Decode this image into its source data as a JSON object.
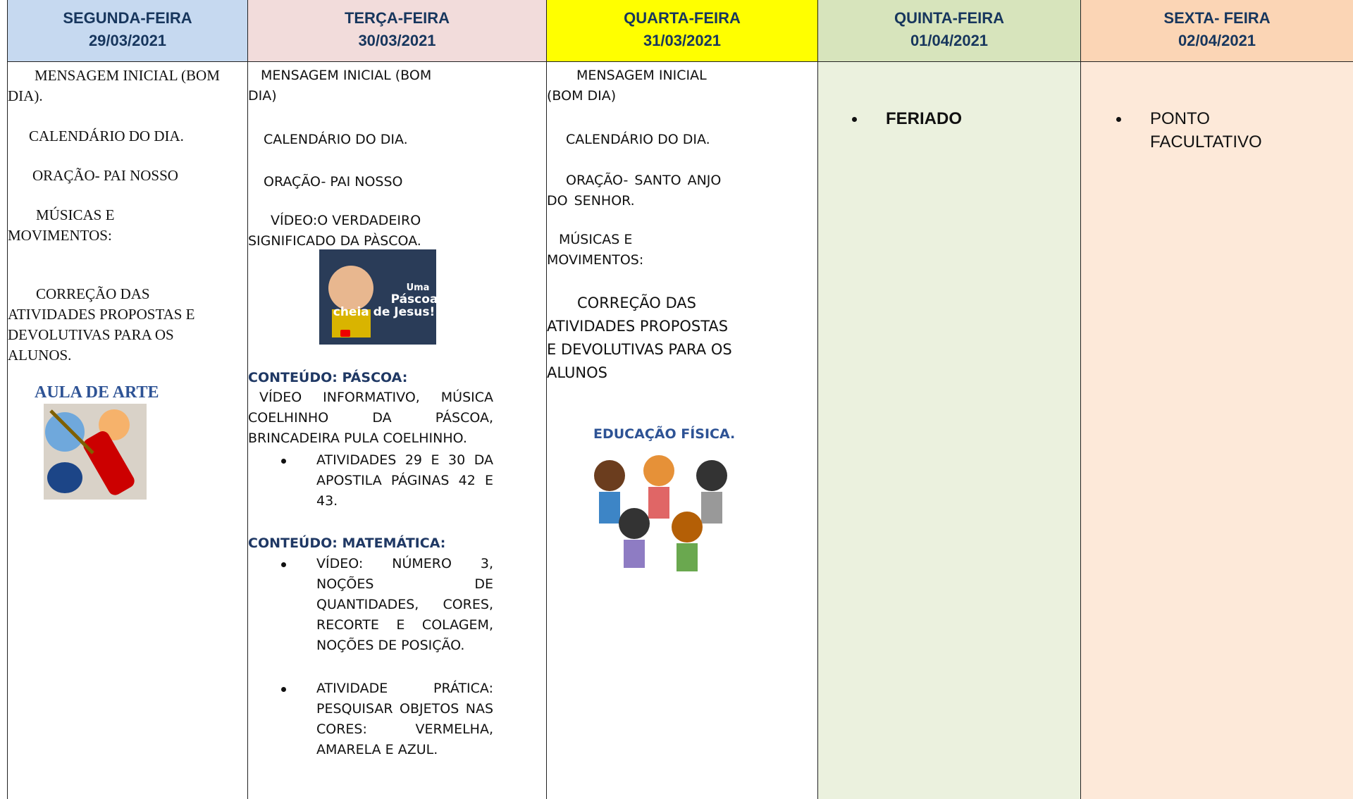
{
  "columns": [
    {
      "day": "SEGUNDA-FEIRA",
      "date": "29/03/2021",
      "items": [
        "MENSAGEM INICIAL (BOM DIA).",
        "CALENDÁRIO DO DIA.",
        "ORAÇÃO- PAI NOSSO",
        "MÚSICAS E MOVIMENTOS:",
        "CORREÇÃO DAS ATIVIDADES PROPOSTAS  E DEVOLUTIVAS PARA OS ALUNOS."
      ],
      "section": "AULA DE ARTE"
    },
    {
      "day": "TERÇA-FEIRA",
      "date": "30/03/2021",
      "items": [
        "MENSAGEM INICIAL (BOM DIA)",
        "CALENDÁRIO DO DIA.",
        "ORAÇÃO- PAI NOSSO",
        "VÍDEO:O VERDADEIRO SIGNIFICADO DA PÀSCOA."
      ],
      "video_thumbnail": {
        "line1": "Uma",
        "line2": "Páscoa",
        "line3": "cheia de Jesus!"
      },
      "sections": [
        {
          "heading": "CONTEÚDO: PÁSCOA:",
          "text": "VÍDEO INFORMATIVO, MÚSICA COELHINHO DA PÁSCOA, BRINCADEIRA PULA COELHINHO.",
          "bullets": [
            "ATIVIDADES 29 E 30 DA APOSTILA PÁGINAS 42 E 43."
          ]
        },
        {
          "heading": "CONTEÚDO: MATEMÁTICA:",
          "bullets": [
            "VÍDEO: NÚMERO 3, NOÇÕES DE QUANTIDADES, CORES, RECORTE E COLAGEM, NOÇÕES DE POSIÇÃO.",
            "ATIVIDADE PRÁTICA: PESQUISAR OBJETOS NAS CORES: VERMELHA, AMARELA E AZUL."
          ]
        }
      ]
    },
    {
      "day": "QUARTA-FEIRA",
      "date": "31/03/2021",
      "items": [
        "MENSAGEM INICIAL (BOM DIA)",
        "CALENDÁRIO DO DIA.",
        "ORAÇÃO- SANTO ANJO DO SENHOR.",
        "MÚSICAS E MOVIMENTOS:",
        "CORREÇÃO DAS ATIVIDADES PROPOSTAS E DEVOLUTIVAS PARA OS ALUNOS"
      ],
      "section": "EDUCAÇÃO FÍSICA."
    },
    {
      "day": "QUINTA-FEIRA",
      "date": "01/04/2021",
      "bullets": [
        "FERIADO"
      ]
    },
    {
      "day": "SEXTA- FEIRA",
      "date": "02/04/2021",
      "bullets": [
        "PONTO FACULTATIVO"
      ]
    }
  ]
}
